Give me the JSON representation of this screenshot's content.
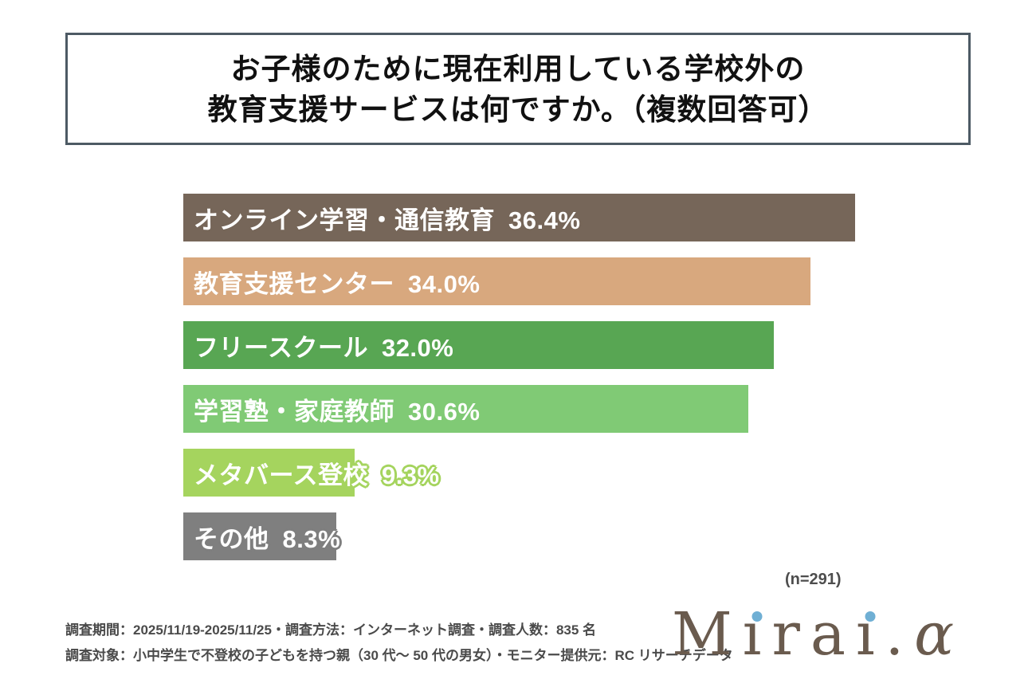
{
  "title": {
    "line1": "お子様のために現在利用している学校外の",
    "line2": "教育支援サービスは何ですか。（複数回答可）"
  },
  "chart_data": {
    "type": "bar",
    "orientation": "horizontal",
    "title": "お子様のために現在利用している学校外の教育支援サービスは何ですか。（複数回答可）",
    "categories": [
      "オンライン学習・通信教育",
      "教育支援センター",
      "フリースクール",
      "学習塾・家庭教師",
      "メタバース登校",
      "その他"
    ],
    "values": [
      36.4,
      34.0,
      32.0,
      30.6,
      9.3,
      8.3
    ],
    "value_labels": [
      "36.4%",
      "34.0%",
      "32.0%",
      "30.6%",
      "9.3%",
      "8.3%"
    ],
    "bar_colors": [
      "#766659",
      "#D8A87E",
      "#58A653",
      "#80CA75",
      "#A5D45E",
      "#7F7F7F"
    ],
    "xlim": [
      0,
      40
    ],
    "grid": false,
    "legend": false,
    "value_label_position": "inline-after-category",
    "sample_note": "(n=291)"
  },
  "footer": {
    "line1": "調査期間：2025/11/19-2025/11/25・調査方法：インターネット調査・調査人数：835 名",
    "line2": "調査対象：小中学生で不登校の子どもを持つ親（30 代～ 50 代の男女）・モニター提供元：RC リサーチデータ"
  },
  "logo": {
    "text": "Mirai.α",
    "letters": [
      "M",
      "ı",
      "r",
      "a",
      "ı",
      ".",
      "α"
    ],
    "text_color": "#6A5B4E",
    "dot_color": "#6FAFD4"
  },
  "colors": {
    "background": "#FFFFFF",
    "title_border": "#4D5A64",
    "title_text": "#111111",
    "footer_text": "#4A4A4A",
    "note_text": "#4D4D4D"
  }
}
